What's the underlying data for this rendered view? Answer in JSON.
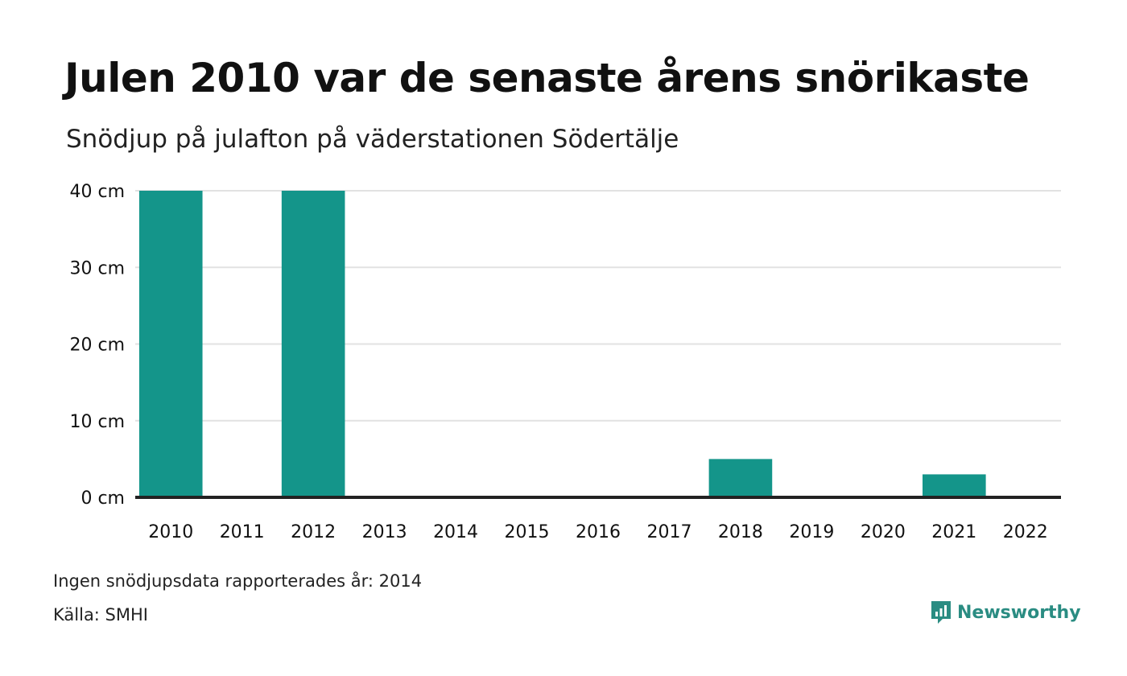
{
  "header": {
    "title": "Julen 2010 var de senaste årens snörikaste",
    "subtitle": "Snödjup på julafton på väderstationen Södertälje"
  },
  "chart_data": {
    "type": "bar",
    "categories": [
      "2010",
      "2011",
      "2012",
      "2013",
      "2014",
      "2015",
      "2016",
      "2017",
      "2018",
      "2019",
      "2020",
      "2021",
      "2022"
    ],
    "values": [
      40,
      0,
      40,
      0,
      0,
      0,
      0,
      0,
      5,
      0,
      0,
      3,
      0
    ],
    "ylim": [
      0,
      40
    ],
    "yticks": [
      0,
      10,
      20,
      30,
      40
    ],
    "ytick_labels": [
      "0 cm",
      "10 cm",
      "20 cm",
      "30 cm",
      "40 cm"
    ],
    "grid": true,
    "bar_color": "#14958a",
    "axis_color": "#222222",
    "grid_color": "#e2e2e2"
  },
  "footer": {
    "note": "Ingen snödjupsdata rapporterades år: 2014",
    "source": "Källa: SMHI",
    "brand": "Newsworthy",
    "brand_color": "#2a8c82"
  }
}
